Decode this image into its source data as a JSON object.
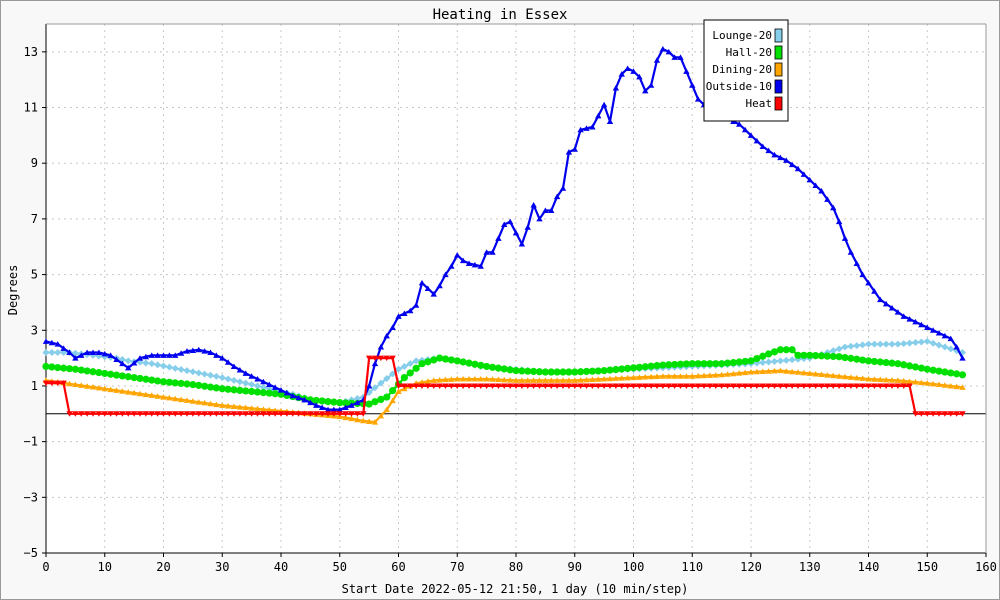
{
  "chart_data": {
    "type": "line",
    "title": "Heating in Essex",
    "xlabel": "Start Date 2022-05-12 21:50, 1 day (10 min/step)",
    "ylabel": "Degrees",
    "xlim": [
      0,
      160
    ],
    "ylim": [
      -5,
      14
    ],
    "x_ticks": [
      0,
      10,
      20,
      30,
      40,
      50,
      60,
      70,
      80,
      90,
      100,
      110,
      120,
      130,
      140,
      150,
      160
    ],
    "y_ticks": [
      -5,
      -3,
      -1,
      1,
      3,
      5,
      7,
      9,
      11,
      13
    ],
    "grid": true,
    "legend_position": "top-right",
    "zero_line": true,
    "series": [
      {
        "name": "Lounge-20",
        "color": "#87ceeb",
        "marker": "diamond",
        "points": [
          [
            0,
            2.2
          ],
          [
            4,
            2.2
          ],
          [
            8,
            2.1
          ],
          [
            12,
            2.0
          ],
          [
            14,
            1.9
          ],
          [
            18,
            1.8
          ],
          [
            24,
            1.55
          ],
          [
            30,
            1.3
          ],
          [
            36,
            1.0
          ],
          [
            42,
            0.7
          ],
          [
            46,
            0.45
          ],
          [
            50,
            0.4
          ],
          [
            54,
            0.6
          ],
          [
            57,
            1.1
          ],
          [
            60,
            1.6
          ],
          [
            63,
            1.9
          ],
          [
            67,
            2.0
          ],
          [
            70,
            1.9
          ],
          [
            74,
            1.7
          ],
          [
            80,
            1.6
          ],
          [
            85,
            1.5
          ],
          [
            90,
            1.5
          ],
          [
            95,
            1.55
          ],
          [
            100,
            1.6
          ],
          [
            105,
            1.65
          ],
          [
            110,
            1.7
          ],
          [
            115,
            1.75
          ],
          [
            120,
            1.8
          ],
          [
            125,
            1.9
          ],
          [
            130,
            2.0
          ],
          [
            133,
            2.2
          ],
          [
            136,
            2.4
          ],
          [
            140,
            2.5
          ],
          [
            145,
            2.5
          ],
          [
            150,
            2.6
          ],
          [
            153,
            2.4
          ],
          [
            156,
            2.2
          ]
        ]
      },
      {
        "name": "Hall-20",
        "color": "#00e000",
        "marker": "circle",
        "points": [
          [
            0,
            1.7
          ],
          [
            5,
            1.6
          ],
          [
            10,
            1.45
          ],
          [
            15,
            1.3
          ],
          [
            20,
            1.15
          ],
          [
            25,
            1.05
          ],
          [
            30,
            0.9
          ],
          [
            35,
            0.8
          ],
          [
            40,
            0.7
          ],
          [
            45,
            0.5
          ],
          [
            50,
            0.4
          ],
          [
            55,
            0.35
          ],
          [
            58,
            0.6
          ],
          [
            61,
            1.3
          ],
          [
            64,
            1.8
          ],
          [
            67,
            2.0
          ],
          [
            70,
            1.9
          ],
          [
            75,
            1.7
          ],
          [
            80,
            1.55
          ],
          [
            85,
            1.5
          ],
          [
            90,
            1.5
          ],
          [
            95,
            1.55
          ],
          [
            100,
            1.65
          ],
          [
            105,
            1.75
          ],
          [
            110,
            1.8
          ],
          [
            115,
            1.8
          ],
          [
            120,
            1.9
          ],
          [
            123,
            2.15
          ],
          [
            125,
            2.3
          ],
          [
            127,
            2.3
          ],
          [
            128,
            2.1
          ],
          [
            130,
            2.1
          ],
          [
            135,
            2.05
          ],
          [
            140,
            1.9
          ],
          [
            145,
            1.8
          ],
          [
            150,
            1.6
          ],
          [
            156,
            1.4
          ]
        ]
      },
      {
        "name": "Dining-20",
        "color": "#ffa500",
        "marker": "triangle",
        "points": [
          [
            0,
            1.2
          ],
          [
            5,
            1.05
          ],
          [
            10,
            0.9
          ],
          [
            15,
            0.75
          ],
          [
            20,
            0.6
          ],
          [
            25,
            0.45
          ],
          [
            30,
            0.3
          ],
          [
            35,
            0.2
          ],
          [
            40,
            0.1
          ],
          [
            45,
            0.0
          ],
          [
            50,
            -0.1
          ],
          [
            54,
            -0.25
          ],
          [
            56,
            -0.3
          ],
          [
            58,
            0.15
          ],
          [
            60,
            0.8
          ],
          [
            63,
            1.1
          ],
          [
            66,
            1.2
          ],
          [
            70,
            1.25
          ],
          [
            75,
            1.25
          ],
          [
            80,
            1.2
          ],
          [
            85,
            1.2
          ],
          [
            90,
            1.2
          ],
          [
            95,
            1.25
          ],
          [
            100,
            1.3
          ],
          [
            105,
            1.35
          ],
          [
            110,
            1.35
          ],
          [
            115,
            1.4
          ],
          [
            120,
            1.5
          ],
          [
            125,
            1.55
          ],
          [
            130,
            1.45
          ],
          [
            135,
            1.35
          ],
          [
            140,
            1.25
          ],
          [
            145,
            1.2
          ],
          [
            150,
            1.1
          ],
          [
            156,
            0.95
          ]
        ]
      },
      {
        "name": "Outside-10",
        "color": "#0000ee",
        "marker": "triangle",
        "points": [
          [
            0,
            2.6
          ],
          [
            2,
            2.5
          ],
          [
            4,
            2.2
          ],
          [
            5,
            2.0
          ],
          [
            7,
            2.2
          ],
          [
            9,
            2.2
          ],
          [
            11,
            2.1
          ],
          [
            13,
            1.8
          ],
          [
            14,
            1.65
          ],
          [
            16,
            2.0
          ],
          [
            18,
            2.1
          ],
          [
            22,
            2.1
          ],
          [
            24,
            2.25
          ],
          [
            26,
            2.3
          ],
          [
            28,
            2.2
          ],
          [
            30,
            2.0
          ],
          [
            32,
            1.7
          ],
          [
            34,
            1.45
          ],
          [
            36,
            1.25
          ],
          [
            38,
            1.05
          ],
          [
            40,
            0.85
          ],
          [
            42,
            0.65
          ],
          [
            44,
            0.5
          ],
          [
            46,
            0.3
          ],
          [
            48,
            0.15
          ],
          [
            50,
            0.15
          ],
          [
            52,
            0.3
          ],
          [
            54,
            0.5
          ],
          [
            55,
            1.0
          ],
          [
            56,
            1.8
          ],
          [
            57,
            2.4
          ],
          [
            58,
            2.8
          ],
          [
            59,
            3.1
          ],
          [
            60,
            3.5
          ],
          [
            62,
            3.7
          ],
          [
            63,
            3.9
          ],
          [
            64,
            4.7
          ],
          [
            65,
            4.5
          ],
          [
            66,
            4.3
          ],
          [
            67,
            4.6
          ],
          [
            68,
            5.0
          ],
          [
            69,
            5.3
          ],
          [
            70,
            5.7
          ],
          [
            71,
            5.5
          ],
          [
            72,
            5.4
          ],
          [
            74,
            5.3
          ],
          [
            75,
            5.8
          ],
          [
            76,
            5.8
          ],
          [
            77,
            6.3
          ],
          [
            78,
            6.8
          ],
          [
            79,
            6.9
          ],
          [
            80,
            6.5
          ],
          [
            81,
            6.1
          ],
          [
            82,
            6.7
          ],
          [
            83,
            7.5
          ],
          [
            84,
            7.0
          ],
          [
            85,
            7.3
          ],
          [
            86,
            7.3
          ],
          [
            87,
            7.8
          ],
          [
            88,
            8.1
          ],
          [
            89,
            9.4
          ],
          [
            90,
            9.5
          ],
          [
            91,
            10.2
          ],
          [
            93,
            10.3
          ],
          [
            94,
            10.7
          ],
          [
            95,
            11.1
          ],
          [
            96,
            10.5
          ],
          [
            97,
            11.7
          ],
          [
            98,
            12.2
          ],
          [
            99,
            12.4
          ],
          [
            100,
            12.3
          ],
          [
            101,
            12.1
          ],
          [
            102,
            11.6
          ],
          [
            103,
            11.8
          ],
          [
            104,
            12.7
          ],
          [
            105,
            13.1
          ],
          [
            106,
            13.0
          ],
          [
            107,
            12.8
          ],
          [
            108,
            12.8
          ],
          [
            109,
            12.3
          ],
          [
            110,
            11.8
          ],
          [
            111,
            11.3
          ],
          [
            112,
            11.1
          ],
          [
            114,
            10.8
          ],
          [
            116,
            10.6
          ],
          [
            118,
            10.4
          ],
          [
            120,
            10.0
          ],
          [
            122,
            9.6
          ],
          [
            124,
            9.3
          ],
          [
            126,
            9.1
          ],
          [
            128,
            8.8
          ],
          [
            130,
            8.4
          ],
          [
            132,
            8.0
          ],
          [
            133,
            7.7
          ],
          [
            134,
            7.4
          ],
          [
            135,
            6.9
          ],
          [
            136,
            6.3
          ],
          [
            137,
            5.8
          ],
          [
            138,
            5.4
          ],
          [
            139,
            5.0
          ],
          [
            140,
            4.7
          ],
          [
            141,
            4.4
          ],
          [
            142,
            4.1
          ],
          [
            144,
            3.8
          ],
          [
            146,
            3.5
          ],
          [
            148,
            3.3
          ],
          [
            150,
            3.1
          ],
          [
            152,
            2.9
          ],
          [
            154,
            2.7
          ],
          [
            155,
            2.4
          ],
          [
            156,
            2.0
          ]
        ]
      },
      {
        "name": "Heat",
        "color": "#ff0000",
        "marker": "triangle-down",
        "points": [
          [
            0,
            1.1
          ],
          [
            3,
            1.1
          ],
          [
            4,
            0.0
          ],
          [
            54,
            0.0
          ],
          [
            55,
            2.0
          ],
          [
            59,
            2.0
          ],
          [
            60,
            1.0
          ],
          [
            147,
            1.0
          ],
          [
            148,
            0.0
          ],
          [
            156,
            0.0
          ]
        ]
      }
    ]
  }
}
